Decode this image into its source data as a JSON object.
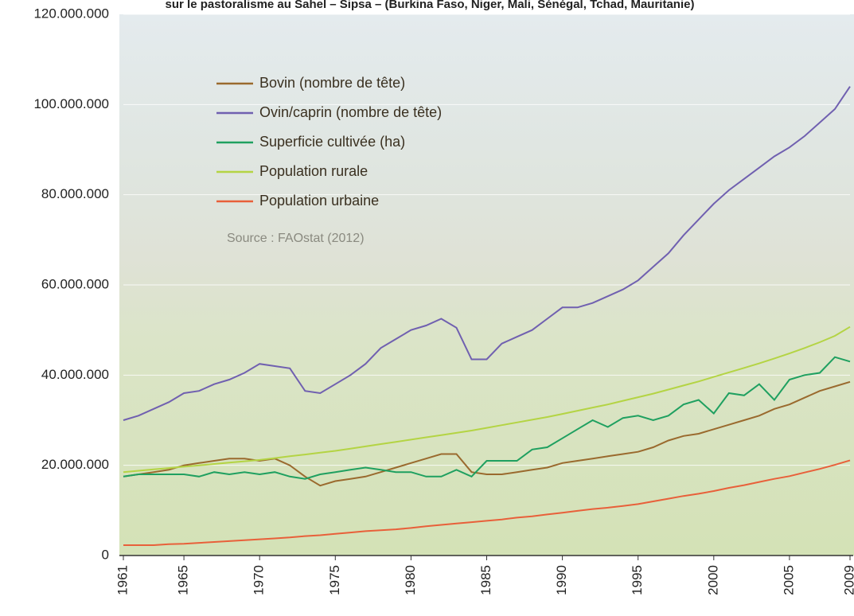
{
  "chart_data": {
    "type": "line",
    "title": "sur le pastoralisme au Sahel – Sipsa – (Burkina Faso, Niger, Mali, Sénégal, Tchad, Mauritanie)",
    "annotation": "Source : FAOstat (2012)",
    "x": [
      1961,
      1962,
      1963,
      1964,
      1965,
      1966,
      1967,
      1968,
      1969,
      1970,
      1971,
      1972,
      1973,
      1974,
      1975,
      1976,
      1977,
      1978,
      1979,
      1980,
      1981,
      1982,
      1983,
      1984,
      1985,
      1986,
      1987,
      1988,
      1989,
      1990,
      1991,
      1992,
      1993,
      1994,
      1995,
      1996,
      1997,
      1998,
      1999,
      2000,
      2001,
      2002,
      2003,
      2004,
      2005,
      2006,
      2007,
      2008,
      2009
    ],
    "xlim": [
      1961,
      2009
    ],
    "xticks": [
      1961,
      1965,
      1970,
      1975,
      1980,
      1985,
      1990,
      1995,
      2000,
      2005,
      2009
    ],
    "ylim": [
      0,
      120000000
    ],
    "yticks": [
      0,
      {
        "value": 20000000,
        "label": "20.000.000"
      },
      {
        "value": 40000000,
        "label": "40.000.000"
      },
      {
        "value": 60000000,
        "label": "60.000.000"
      },
      {
        "value": 80000000,
        "label": "80.000.000"
      },
      {
        "value": 100000000,
        "label": "100.000.000"
      },
      {
        "value": 120000000,
        "label": "120.000.000"
      }
    ],
    "grid": true,
    "legend": "upper-left",
    "series": [
      {
        "name": "Bovin (nombre de tête)",
        "color": "#9a6a2e",
        "values": [
          17500000,
          18000000,
          18500000,
          19000000,
          20000000,
          20500000,
          21000000,
          21500000,
          21500000,
          21000000,
          21500000,
          20000000,
          17500000,
          15500000,
          16500000,
          17000000,
          17500000,
          18500000,
          19500000,
          20500000,
          21500000,
          22500000,
          22500000,
          18500000,
          18000000,
          18000000,
          18500000,
          19000000,
          19500000,
          20500000,
          21000000,
          21500000,
          22000000,
          22500000,
          23000000,
          24000000,
          25500000,
          26500000,
          27000000,
          28000000,
          29000000,
          30000000,
          31000000,
          32500000,
          33500000,
          35000000,
          36500000,
          37500000,
          38500000
        ]
      },
      {
        "name": "Ovin/caprin (nombre de tête)",
        "color": "#7060b0",
        "values": [
          30000000,
          31000000,
          32500000,
          34000000,
          36000000,
          36500000,
          38000000,
          39000000,
          40500000,
          42500000,
          42000000,
          41500000,
          36500000,
          36000000,
          38000000,
          40000000,
          42500000,
          46000000,
          48000000,
          50000000,
          51000000,
          52500000,
          50500000,
          43500000,
          43500000,
          47000000,
          48500000,
          50000000,
          52500000,
          55000000,
          55000000,
          56000000,
          57500000,
          59000000,
          61000000,
          64000000,
          67000000,
          71000000,
          74500000,
          78000000,
          81000000,
          83500000,
          86000000,
          88500000,
          90500000,
          93000000,
          96000000,
          99000000,
          104000000
        ]
      },
      {
        "name": "Superficie cultivée (ha)",
        "color": "#1fa060",
        "values": [
          17500000,
          18000000,
          18000000,
          18000000,
          18000000,
          17500000,
          18500000,
          18000000,
          18500000,
          18000000,
          18500000,
          17500000,
          17000000,
          18000000,
          18500000,
          19000000,
          19500000,
          19000000,
          18500000,
          18500000,
          17500000,
          17500000,
          19000000,
          17500000,
          21000000,
          21000000,
          21000000,
          23500000,
          24000000,
          26000000,
          28000000,
          30000000,
          28500000,
          30500000,
          31000000,
          30000000,
          31000000,
          33500000,
          34500000,
          31500000,
          36000000,
          35500000,
          38000000,
          34500000,
          39000000,
          40000000,
          40500000,
          44000000,
          43000000
        ]
      },
      {
        "name": "Population rurale",
        "color": "#b4d444",
        "values": [
          18500000,
          18800000,
          19100000,
          19400000,
          19700000,
          20000000,
          20300000,
          20600000,
          20900000,
          21200000,
          21600000,
          22000000,
          22400000,
          22800000,
          23200000,
          23700000,
          24200000,
          24700000,
          25200000,
          25700000,
          26200000,
          26700000,
          27200000,
          27700000,
          28300000,
          28900000,
          29500000,
          30100000,
          30700000,
          31400000,
          32100000,
          32800000,
          33500000,
          34300000,
          35100000,
          35900000,
          36800000,
          37700000,
          38600000,
          39600000,
          40600000,
          41600000,
          42600000,
          43700000,
          44800000,
          46000000,
          47300000,
          48700000,
          50700000
        ]
      },
      {
        "name": "Population urbaine",
        "color": "#e8603a",
        "values": [
          2300000,
          2300000,
          2300000,
          2500000,
          2600000,
          2800000,
          3000000,
          3200000,
          3400000,
          3600000,
          3800000,
          4000000,
          4300000,
          4500000,
          4800000,
          5100000,
          5400000,
          5600000,
          5800000,
          6100000,
          6500000,
          6800000,
          7100000,
          7400000,
          7700000,
          8000000,
          8400000,
          8700000,
          9100000,
          9500000,
          9900000,
          10300000,
          10600000,
          11000000,
          11400000,
          12000000,
          12600000,
          13200000,
          13700000,
          14300000,
          15000000,
          15600000,
          16300000,
          17000000,
          17600000,
          18400000,
          19200000,
          20100000,
          21100000
        ]
      }
    ]
  }
}
